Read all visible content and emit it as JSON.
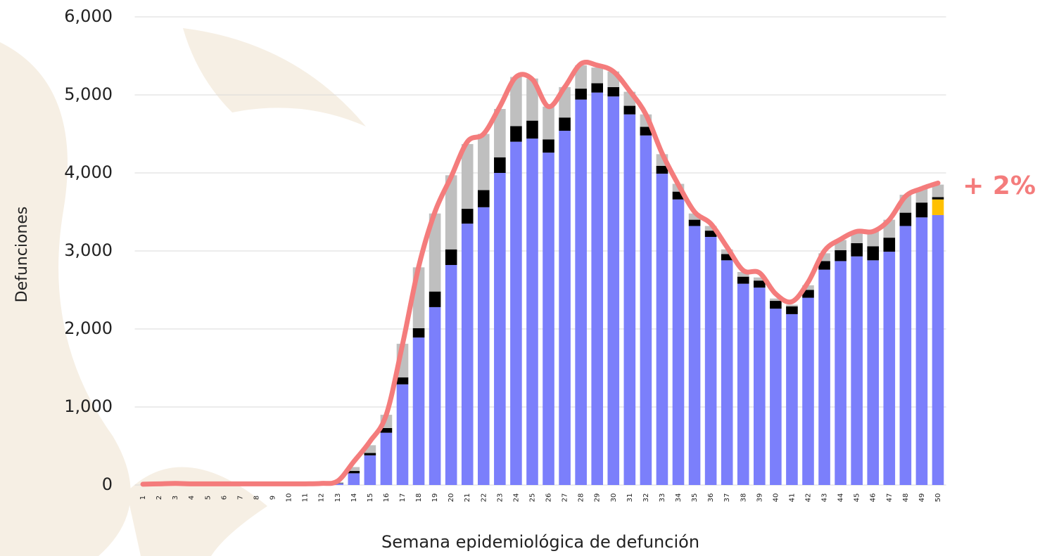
{
  "chart_data": {
    "type": "bar",
    "stacked": true,
    "x_label": "Semana epidemiológica de defunción",
    "y_label": "Defunciones",
    "annotation": "+ 2%",
    "annotation_color": "#f47c7c",
    "categories": [
      "1",
      "2",
      "3",
      "4",
      "5",
      "6",
      "7",
      "8",
      "9",
      "10",
      "11",
      "12",
      "13",
      "14",
      "15",
      "16",
      "17",
      "18",
      "19",
      "20",
      "21",
      "22",
      "23",
      "24",
      "25",
      "26",
      "27",
      "28",
      "29",
      "30",
      "31",
      "32",
      "33",
      "34",
      "35",
      "36",
      "37",
      "38",
      "39",
      "40",
      "41",
      "42",
      "43",
      "44",
      "45",
      "46",
      "47",
      "48",
      "49",
      "50"
    ],
    "series": [
      {
        "color": "#7b7ffb",
        "values": [
          0,
          0,
          0,
          0,
          0,
          0,
          0,
          0,
          0,
          0,
          0,
          0,
          20,
          150,
          380,
          670,
          1290,
          1890,
          2280,
          2820,
          3350,
          3560,
          4000,
          4400,
          4440,
          4260,
          4540,
          4940,
          5030,
          4980,
          4750,
          4480,
          3990,
          3660,
          3320,
          3180,
          2880,
          2580,
          2530,
          2260,
          2190,
          2400,
          2760,
          2870,
          2930,
          2880,
          2990,
          3320,
          3430,
          3460
        ]
      },
      {
        "color": "#ffc000",
        "values": [
          0,
          0,
          0,
          0,
          0,
          0,
          0,
          0,
          0,
          0,
          0,
          0,
          0,
          0,
          0,
          0,
          0,
          0,
          0,
          0,
          0,
          0,
          0,
          0,
          0,
          0,
          0,
          0,
          0,
          0,
          0,
          0,
          0,
          0,
          0,
          0,
          0,
          0,
          0,
          0,
          0,
          0,
          0,
          0,
          0,
          0,
          0,
          0,
          0,
          200
        ]
      },
      {
        "color": "#000000",
        "values": [
          0,
          0,
          0,
          0,
          0,
          0,
          0,
          0,
          0,
          0,
          0,
          0,
          5,
          30,
          30,
          60,
          90,
          120,
          200,
          200,
          190,
          220,
          200,
          200,
          230,
          170,
          170,
          140,
          120,
          120,
          110,
          110,
          100,
          100,
          80,
          80,
          80,
          90,
          90,
          100,
          100,
          100,
          110,
          140,
          170,
          180,
          180,
          170,
          190,
          30
        ]
      },
      {
        "color": "#bfbfbf",
        "values": [
          0,
          0,
          0,
          0,
          0,
          0,
          0,
          0,
          0,
          0,
          0,
          0,
          10,
          50,
          100,
          170,
          430,
          780,
          1000,
          950,
          830,
          720,
          620,
          630,
          540,
          420,
          390,
          300,
          200,
          200,
          180,
          160,
          150,
          100,
          80,
          60,
          60,
          60,
          40,
          30,
          20,
          60,
          100,
          130,
          150,
          190,
          230,
          230,
          180,
          160
        ]
      }
    ],
    "line": {
      "color": "#f47c7c",
      "values": [
        10,
        15,
        20,
        15,
        15,
        15,
        15,
        15,
        15,
        15,
        15,
        20,
        50,
        300,
        560,
        900,
        1800,
        2800,
        3500,
        3950,
        4400,
        4500,
        4850,
        5230,
        5200,
        4850,
        5100,
        5400,
        5380,
        5300,
        5050,
        4750,
        4250,
        3850,
        3500,
        3350,
        3050,
        2750,
        2720,
        2450,
        2350,
        2600,
        3000,
        3150,
        3250,
        3250,
        3400,
        3700,
        3800,
        3870
      ]
    },
    "ylim": [
      0,
      6000
    ],
    "yticks": [
      0,
      {
        "value": 1000,
        "label": "1,000"
      },
      {
        "value": 2000,
        "label": "2,000"
      },
      {
        "value": 3000,
        "label": "3,000"
      },
      {
        "value": 4000,
        "label": "4,000"
      },
      {
        "value": 5000,
        "label": "5,000"
      },
      {
        "value": 6000,
        "label": "6,000"
      }
    ],
    "grid": true
  }
}
